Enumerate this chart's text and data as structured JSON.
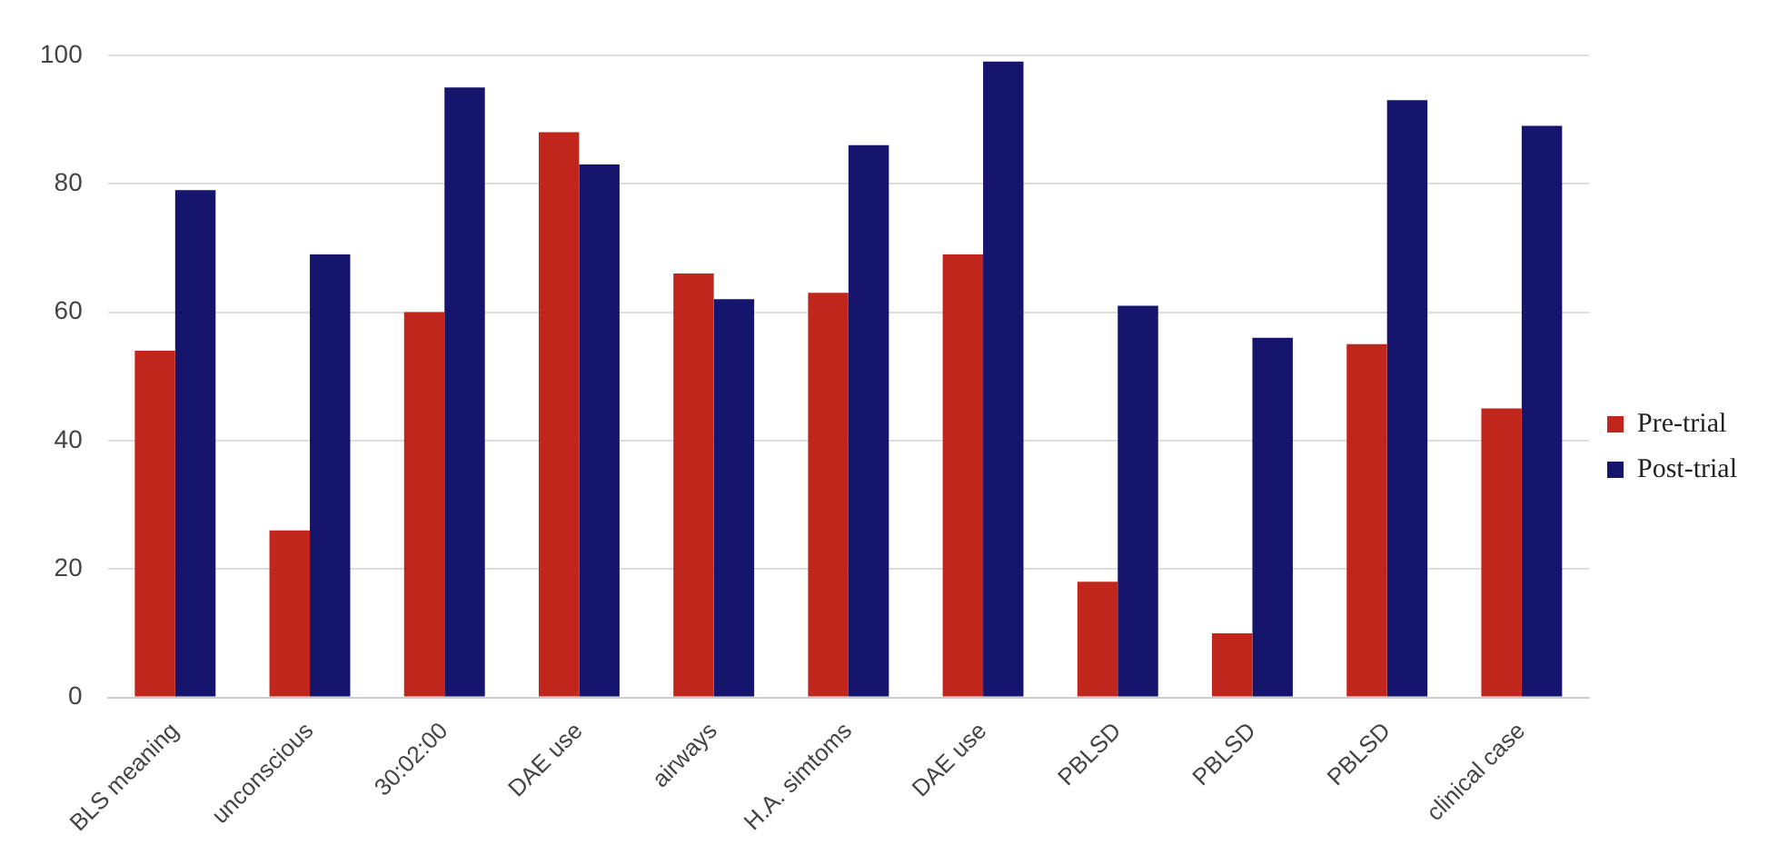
{
  "chart_data": {
    "type": "bar",
    "categories": [
      "BLS meaning",
      "unconscious",
      "30:02:00",
      "DAE use",
      "airways",
      "H.A. simtoms",
      "DAE use",
      "PBLSD",
      "PBLSD",
      "PBLSD",
      "clinical case"
    ],
    "series": [
      {
        "name": "Pre-trial",
        "color": "#c0261c",
        "values": [
          54,
          26,
          60,
          88,
          66,
          63,
          69,
          18,
          10,
          55,
          45
        ]
      },
      {
        "name": "Post-trial",
        "color": "#15156e",
        "values": [
          79,
          69,
          95,
          83,
          62,
          86,
          99,
          61,
          56,
          93,
          89
        ]
      }
    ],
    "ylim": [
      0,
      100
    ],
    "yticks": [
      0,
      20,
      40,
      60,
      80,
      100
    ],
    "grid": "y",
    "legend": "right"
  }
}
